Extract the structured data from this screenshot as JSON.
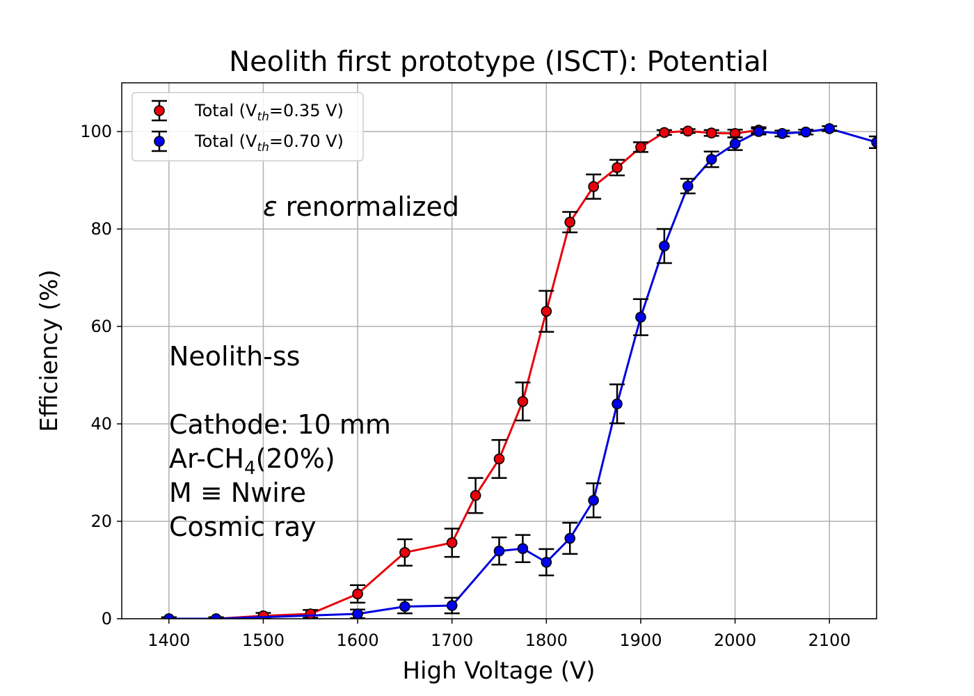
{
  "chart_data": {
    "type": "line",
    "title": "Neolith first prototype (ISCT): Potential",
    "xlabel": "High Voltage (V)",
    "ylabel": "Efficiency (%)",
    "xlim": [
      1350,
      2150
    ],
    "ylim": [
      0,
      110
    ],
    "xticks": [
      1400,
      1500,
      1600,
      1700,
      1800,
      1900,
      2000,
      2100
    ],
    "yticks": [
      0,
      20,
      40,
      60,
      80,
      100
    ],
    "grid": true,
    "legend_position": "top-left",
    "series": [
      {
        "name": "Total (V_th=0.35 V)",
        "legend_prefix": "Total (V",
        "legend_sub": "th",
        "legend_suffix": "=0.35 V)",
        "color": "#e8000b",
        "marker_color": "#e8000b",
        "x": [
          1400,
          1450,
          1500,
          1550,
          1600,
          1650,
          1700,
          1725,
          1750,
          1775,
          1800,
          1825,
          1850,
          1875,
          1900,
          1925,
          1950,
          1975,
          2000,
          2025
        ],
        "y": [
          0.0,
          0.0,
          0.6,
          1.0,
          5.1,
          13.6,
          15.6,
          25.3,
          32.8,
          44.6,
          63.1,
          81.4,
          88.7,
          92.6,
          96.8,
          99.8,
          100.1,
          99.7,
          99.6,
          100.3
        ],
        "yerr": [
          0.3,
          0.3,
          0.6,
          0.8,
          1.8,
          2.7,
          2.9,
          3.6,
          3.9,
          3.9,
          4.2,
          2.1,
          2.5,
          1.6,
          1.0,
          0.5,
          0.4,
          0.6,
          0.8,
          0.6
        ]
      },
      {
        "name": "Total (V_th=0.70 V)",
        "legend_prefix": "Total (V",
        "legend_sub": "th",
        "legend_suffix": "=0.70 V)",
        "color": "#0000dd",
        "marker_color": "#0000ee",
        "x": [
          1400,
          1450,
          1600,
          1650,
          1700,
          1750,
          1775,
          1800,
          1825,
          1850,
          1875,
          1900,
          1925,
          1950,
          1975,
          2000,
          2025,
          2050,
          2075,
          2100,
          2150
        ],
        "y": [
          0.0,
          0.0,
          1.0,
          2.5,
          2.7,
          13.9,
          14.4,
          11.6,
          16.5,
          24.3,
          44.1,
          61.9,
          76.5,
          88.8,
          94.3,
          97.5,
          100.0,
          99.6,
          99.9,
          100.6,
          97.8
        ],
        "yerr": [
          0.3,
          0.3,
          0.9,
          1.4,
          1.6,
          2.8,
          2.8,
          2.7,
          3.2,
          3.5,
          4.0,
          3.7,
          3.5,
          1.5,
          1.6,
          1.3,
          0.6,
          0.6,
          0.5,
          0.5,
          1.2
        ]
      }
    ],
    "annotations": {
      "renorm_prefix": "ε",
      "renorm_text": " renormalized",
      "detector": "Neolith-ss",
      "detector_color": "#f5a300",
      "info_color": "#0000dd",
      "cathode": "Cathode: 10 mm",
      "gas_prefix": "Ar-CH",
      "gas_sub": "4",
      "gas_suffix": "(20%)",
      "mult": "M ≡ Nwire",
      "source": "Cosmic ray"
    }
  }
}
